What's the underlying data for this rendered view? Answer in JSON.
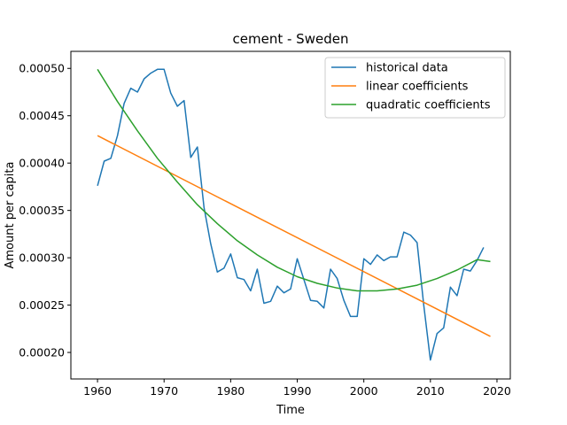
{
  "chart_data": {
    "type": "line",
    "title": "cement - Sweden",
    "xlabel": "Time",
    "ylabel": "Amount per capita",
    "xlim": [
      1956,
      2022
    ],
    "ylim": [
      0.000172,
      0.000518
    ],
    "xticks": [
      1960,
      1970,
      1980,
      1990,
      2000,
      2010,
      2020
    ],
    "xtick_labels": [
      "1960",
      "1970",
      "1980",
      "1990",
      "2000",
      "2010",
      "2020"
    ],
    "yticks": [
      0.0002,
      0.00025,
      0.0003,
      0.00035,
      0.0004,
      0.00045,
      0.0005
    ],
    "ytick_labels": [
      "0.00020",
      "0.00025",
      "0.00030",
      "0.00035",
      "0.00040",
      "0.00045",
      "0.00050"
    ],
    "grid": false,
    "legend_position": "top-right",
    "series": [
      {
        "name": "historical data",
        "color": "#1f77b4",
        "x": [
          1960,
          1961,
          1962,
          1963,
          1964,
          1965,
          1966,
          1967,
          1968,
          1969,
          1970,
          1971,
          1972,
          1973,
          1974,
          1975,
          1976,
          1977,
          1978,
          1979,
          1980,
          1981,
          1982,
          1983,
          1984,
          1985,
          1986,
          1987,
          1988,
          1989,
          1990,
          1991,
          1992,
          1993,
          1994,
          1995,
          1996,
          1997,
          1998,
          1999,
          2000,
          2001,
          2002,
          2003,
          2004,
          2005,
          2006,
          2007,
          2008,
          2009,
          2010,
          2011,
          2012,
          2013,
          2014,
          2015,
          2016,
          2017,
          2018
        ],
        "y": [
          0.000376,
          0.000402,
          0.000405,
          0.000429,
          0.000463,
          0.000479,
          0.000475,
          0.000489,
          0.000495,
          0.000499,
          0.000499,
          0.000474,
          0.00046,
          0.000466,
          0.000406,
          0.000417,
          0.000353,
          0.000315,
          0.000285,
          0.000289,
          0.000304,
          0.000279,
          0.000277,
          0.000265,
          0.000288,
          0.000252,
          0.000254,
          0.00027,
          0.000263,
          0.000267,
          0.000299,
          0.000277,
          0.000255,
          0.000254,
          0.000247,
          0.000288,
          0.000278,
          0.000255,
          0.000238,
          0.000238,
          0.000299,
          0.000293,
          0.000303,
          0.000297,
          0.000301,
          0.000301,
          0.000327,
          0.000324,
          0.000316,
          0.00025,
          0.000192,
          0.00022,
          0.000226,
          0.000269,
          0.00026,
          0.000288,
          0.000286,
          0.000297,
          0.000311
        ]
      },
      {
        "name": "linear coefficients",
        "color": "#ff7f0e",
        "x": [
          1960,
          2019
        ],
        "y": [
          0.000429,
          0.000217
        ]
      },
      {
        "name": "quadratic coefficients",
        "color": "#2ca02c",
        "x": [
          1960,
          1963,
          1966,
          1969,
          1972,
          1975,
          1978,
          1981,
          1984,
          1987,
          1990,
          1993,
          1996,
          1999,
          2002,
          2005,
          2008,
          2011,
          2014,
          2017,
          2019
        ],
        "y": [
          0.000499,
          0.000465,
          0.000434,
          0.000405,
          0.00038,
          0.000356,
          0.000336,
          0.000318,
          0.000303,
          0.00029,
          0.00028,
          0.000273,
          0.000268,
          0.000265,
          0.000265,
          0.000267,
          0.000271,
          0.000278,
          0.000287,
          0.000298,
          0.000296
        ]
      }
    ]
  }
}
